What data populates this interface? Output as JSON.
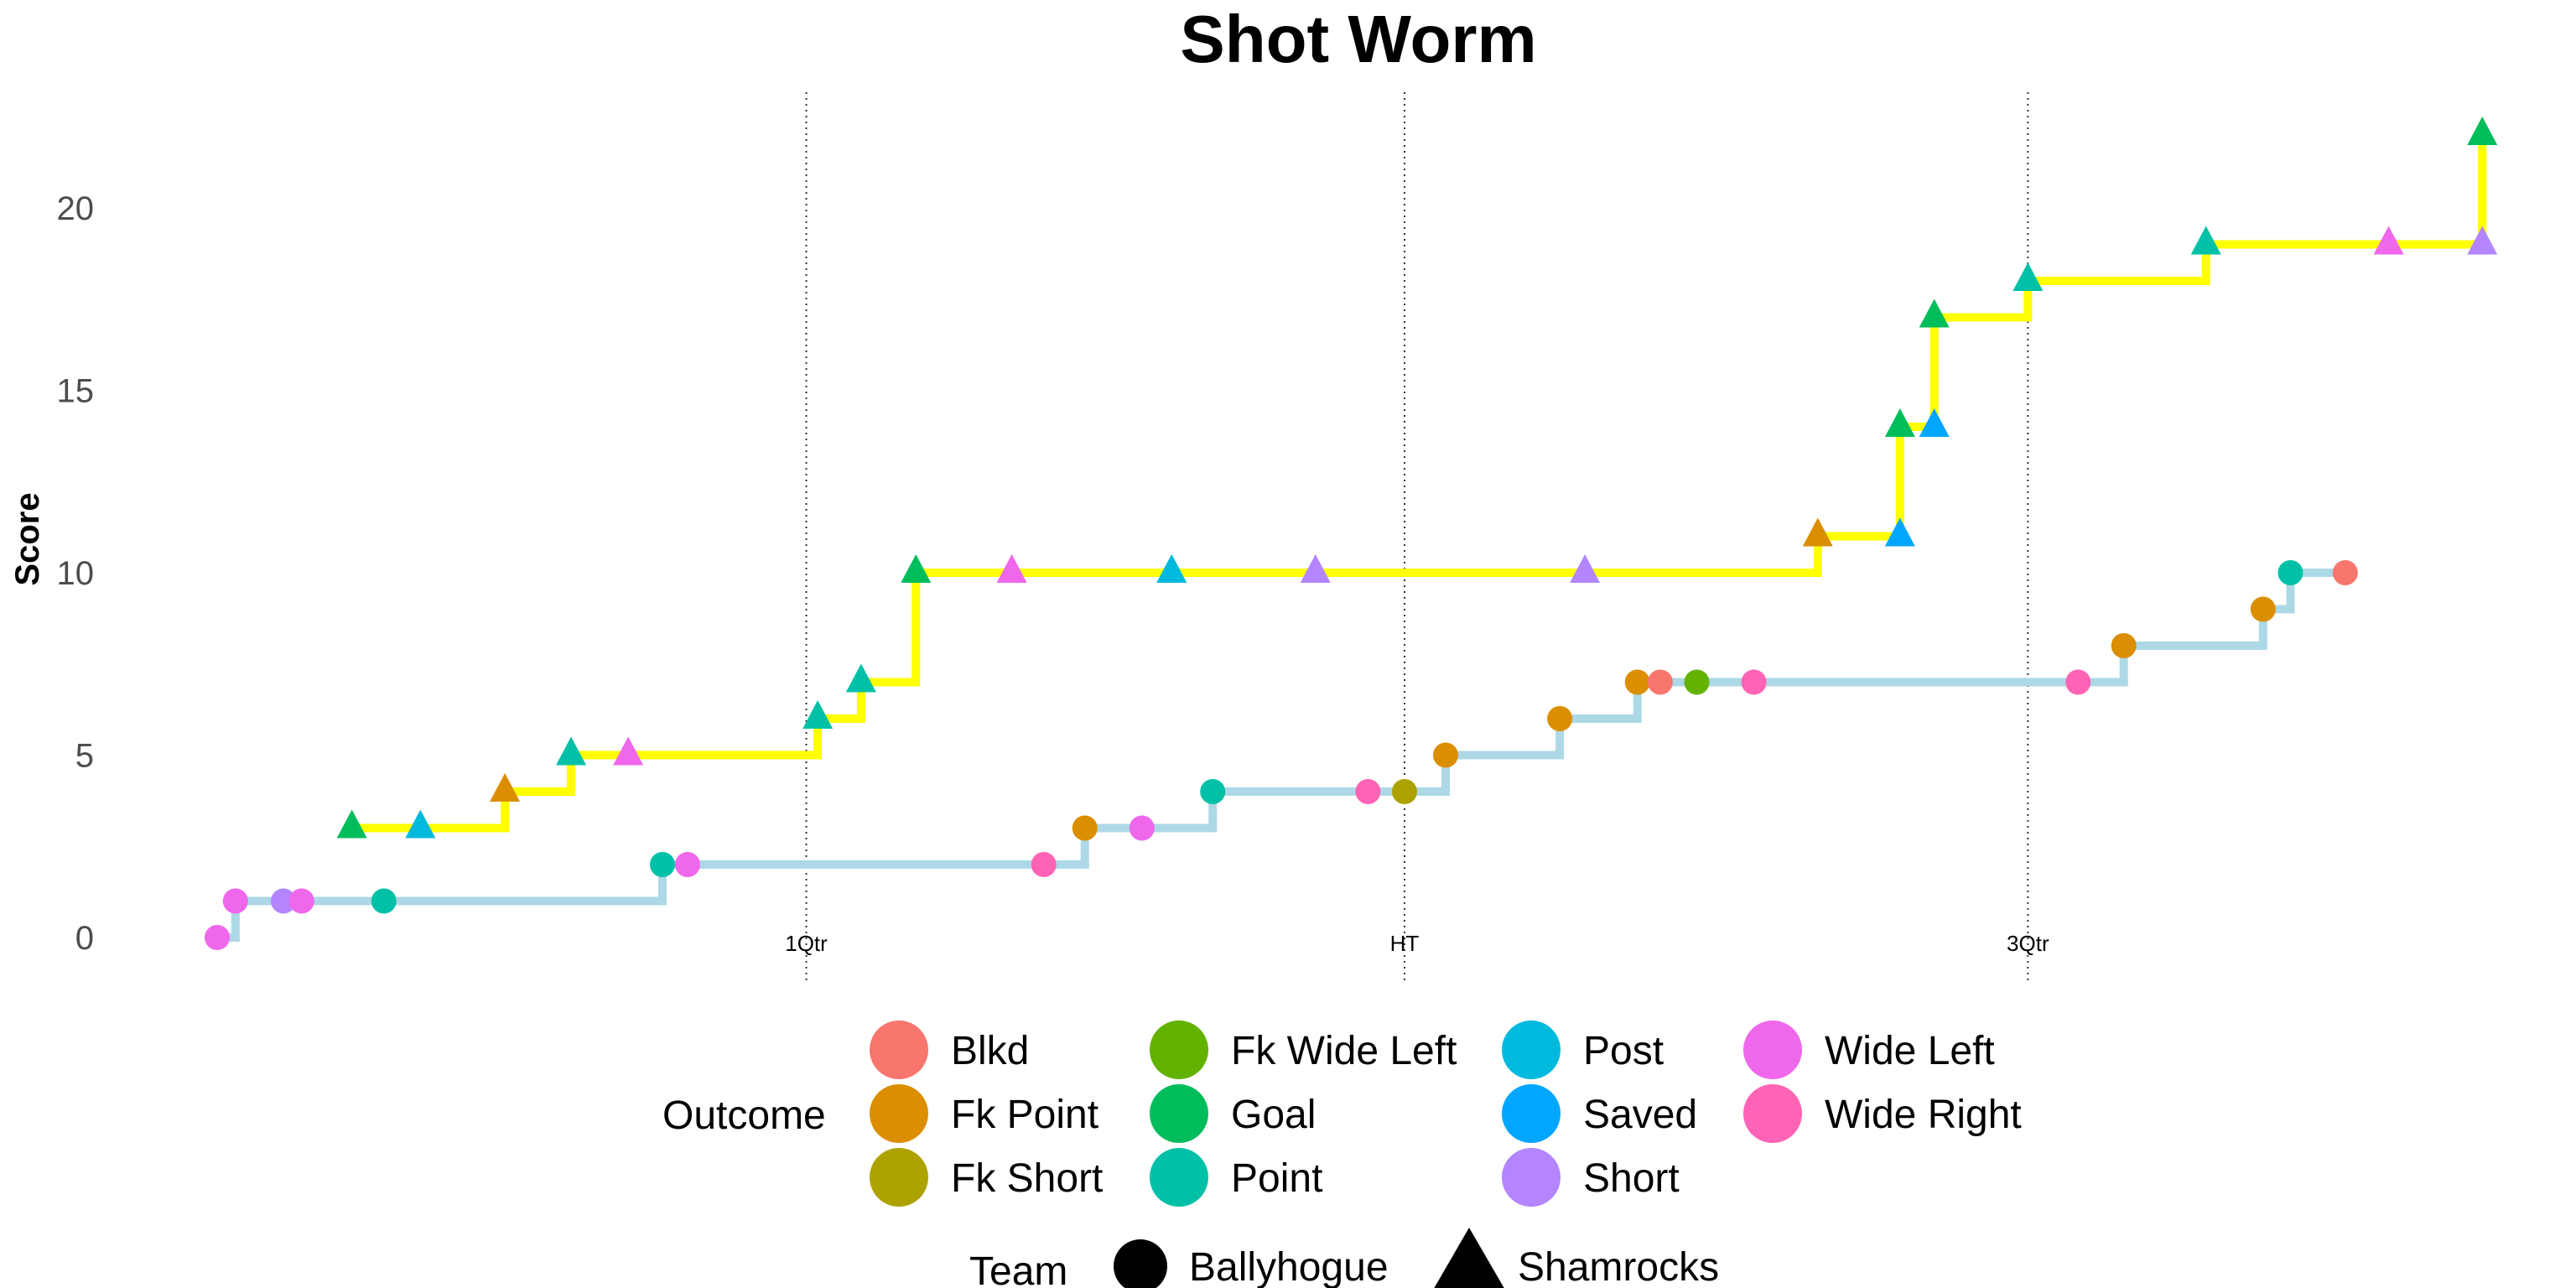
{
  "chart_data": {
    "type": "line",
    "title": "Shot Worm",
    "ylabel": "Score",
    "xlabel": "",
    "xlim": [
      0,
      100
    ],
    "ylim": [
      0,
      22
    ],
    "yticks": [
      0,
      5,
      10,
      15,
      20
    ],
    "grid": false,
    "markers": [
      {
        "x": 25.8,
        "label": "1Qtr"
      },
      {
        "x": 52.0,
        "label": "HT"
      },
      {
        "x": 79.3,
        "label": "3Qtr"
      }
    ],
    "series": [
      {
        "name": "Ballyhogue",
        "shape": "circle",
        "line_color": "#add8e6",
        "points": [
          {
            "x": 0.0,
            "y": 0,
            "outcome": "Wide Left"
          },
          {
            "x": 0.8,
            "y": 1,
            "outcome": "Wide Left"
          },
          {
            "x": 2.9,
            "y": 1,
            "outcome": "Short"
          },
          {
            "x": 3.7,
            "y": 1,
            "outcome": "Wide Left"
          },
          {
            "x": 7.3,
            "y": 1,
            "outcome": "Point"
          },
          {
            "x": 19.5,
            "y": 2,
            "outcome": "Point"
          },
          {
            "x": 20.6,
            "y": 2,
            "outcome": "Wide Left"
          },
          {
            "x": 36.2,
            "y": 2,
            "outcome": "Wide Right"
          },
          {
            "x": 38.0,
            "y": 3,
            "outcome": "Fk Point"
          },
          {
            "x": 40.5,
            "y": 3,
            "outcome": "Wide Left"
          },
          {
            "x": 43.6,
            "y": 4,
            "outcome": "Point"
          },
          {
            "x": 50.4,
            "y": 4,
            "outcome": "Wide Right"
          },
          {
            "x": 52.0,
            "y": 4,
            "outcome": "Fk Short"
          },
          {
            "x": 53.8,
            "y": 5,
            "outcome": "Fk Point"
          },
          {
            "x": 58.8,
            "y": 6,
            "outcome": "Fk Point"
          },
          {
            "x": 62.2,
            "y": 7,
            "outcome": "Fk Point"
          },
          {
            "x": 63.2,
            "y": 7,
            "outcome": "Blkd"
          },
          {
            "x": 64.8,
            "y": 7,
            "outcome": "Fk Wide Left"
          },
          {
            "x": 67.3,
            "y": 7,
            "outcome": "Wide Right"
          },
          {
            "x": 81.5,
            "y": 7,
            "outcome": "Wide Right"
          },
          {
            "x": 83.5,
            "y": 8,
            "outcome": "Fk Point"
          },
          {
            "x": 89.6,
            "y": 9,
            "outcome": "Fk Point"
          },
          {
            "x": 90.8,
            "y": 10,
            "outcome": "Point"
          },
          {
            "x": 93.2,
            "y": 10,
            "outcome": "Blkd"
          }
        ]
      },
      {
        "name": "Shamrocks",
        "shape": "triangle",
        "line_color": "#ffff00",
        "points": [
          {
            "x": 5.9,
            "y": 3,
            "outcome": "Goal"
          },
          {
            "x": 8.9,
            "y": 3,
            "outcome": "Post"
          },
          {
            "x": 12.6,
            "y": 4,
            "outcome": "Fk Point"
          },
          {
            "x": 15.5,
            "y": 5,
            "outcome": "Point"
          },
          {
            "x": 18.0,
            "y": 5,
            "outcome": "Wide Left"
          },
          {
            "x": 26.3,
            "y": 6,
            "outcome": "Point"
          },
          {
            "x": 28.2,
            "y": 7,
            "outcome": "Point"
          },
          {
            "x": 30.6,
            "y": 10,
            "outcome": "Goal"
          },
          {
            "x": 34.8,
            "y": 10,
            "outcome": "Wide Left"
          },
          {
            "x": 41.8,
            "y": 10,
            "outcome": "Point"
          },
          {
            "x": 41.8,
            "y": 10,
            "outcome": "Post"
          },
          {
            "x": 48.1,
            "y": 10,
            "outcome": "Short"
          },
          {
            "x": 59.9,
            "y": 10,
            "outcome": "Short"
          },
          {
            "x": 70.1,
            "y": 11,
            "outcome": "Fk Point"
          },
          {
            "x": 73.7,
            "y": 11,
            "outcome": "Saved"
          },
          {
            "x": 73.7,
            "y": 14,
            "outcome": "Goal"
          },
          {
            "x": 75.2,
            "y": 14,
            "outcome": "Saved"
          },
          {
            "x": 75.2,
            "y": 17,
            "outcome": "Goal"
          },
          {
            "x": 79.3,
            "y": 18,
            "outcome": "Point"
          },
          {
            "x": 87.1,
            "y": 19,
            "outcome": "Point"
          },
          {
            "x": 95.1,
            "y": 19,
            "outcome": "Wide Left"
          },
          {
            "x": 99.2,
            "y": 19,
            "outcome": "Short"
          },
          {
            "x": 99.2,
            "y": 22,
            "outcome": "Goal"
          }
        ]
      }
    ],
    "legend": {
      "placement": "bottom",
      "outcome_title": "Outcome",
      "team_title": "Team",
      "outcomes": [
        {
          "name": "Blkd",
          "color": "#f8766d"
        },
        {
          "name": "Fk Point",
          "color": "#db8e00"
        },
        {
          "name": "Fk Short",
          "color": "#aea200"
        },
        {
          "name": "Fk Wide Left",
          "color": "#64b200"
        },
        {
          "name": "Goal",
          "color": "#00bd5c"
        },
        {
          "name": "Point",
          "color": "#00c1a7"
        },
        {
          "name": "Post",
          "color": "#00bade"
        },
        {
          "name": "Saved",
          "color": "#00a6ff"
        },
        {
          "name": "Short",
          "color": "#b385ff"
        },
        {
          "name": "Wide Left",
          "color": "#ef67eb"
        },
        {
          "name": "Wide Right",
          "color": "#ff63b6"
        }
      ],
      "teams": [
        {
          "name": "Ballyhogue",
          "shape": "circle"
        },
        {
          "name": "Shamrocks",
          "shape": "triangle"
        }
      ]
    }
  }
}
